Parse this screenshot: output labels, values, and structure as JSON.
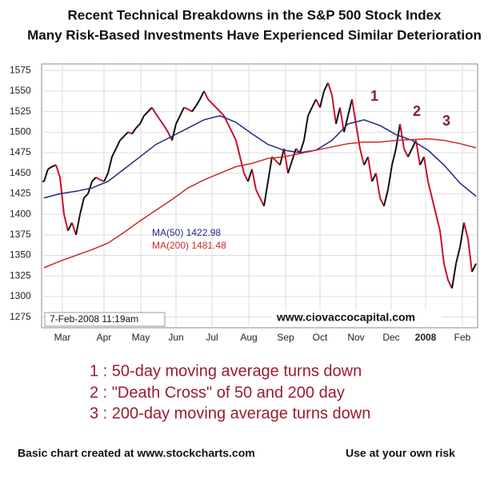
{
  "chart_data": {
    "type": "price",
    "title": "Recent Technical Breakdowns in the S&P 500 Stock Index",
    "subtitle": "Many Risk-Based Investments Have Experienced Similar Deterioration",
    "xlim": [
      -0.6,
      108.4
    ],
    "ylim": [
      1262,
      1583
    ],
    "yticks": [
      1275,
      1300,
      1325,
      1350,
      1375,
      1400,
      1425,
      1450,
      1475,
      1500,
      1525,
      1550,
      1575
    ],
    "xticks": [
      {
        "value": 4.6,
        "label": "Mar"
      },
      {
        "value": 15,
        "label": "Apr"
      },
      {
        "value": 24.2,
        "label": "May"
      },
      {
        "value": 33,
        "label": "Jun"
      },
      {
        "value": 42,
        "label": "Jul"
      },
      {
        "value": 51.2,
        "label": "Aug"
      },
      {
        "value": 60.4,
        "label": "Sep"
      },
      {
        "value": 69,
        "label": "Oct"
      },
      {
        "value": 78,
        "label": "Nov"
      },
      {
        "value": 86.8,
        "label": "Dec"
      },
      {
        "value": 95.4,
        "label": "2008"
      },
      {
        "value": 104.6,
        "label": "Feb"
      }
    ],
    "grid": true,
    "series": [
      {
        "color": "#c8102e",
        "up_color": "#111111",
        "x": [
          0,
          1,
          2,
          3,
          4,
          5,
          6,
          7,
          8,
          9,
          10,
          11,
          12,
          13,
          14,
          15,
          16,
          17,
          18,
          19,
          20,
          21,
          22,
          23,
          24,
          25,
          26,
          27,
          28,
          29,
          30,
          31,
          32,
          33,
          34,
          35,
          36,
          37,
          38,
          39,
          40,
          41,
          42,
          43,
          44,
          45,
          46,
          47,
          48,
          49,
          50,
          51,
          52,
          53,
          54,
          55,
          56,
          57,
          58,
          59,
          60,
          61,
          62,
          63,
          64,
          65,
          66,
          67,
          68,
          69,
          70,
          71,
          72,
          73,
          74,
          75,
          76,
          77,
          78,
          79,
          80,
          81,
          82,
          83,
          84,
          85,
          86,
          87,
          88,
          89,
          90,
          91,
          92,
          93,
          94,
          95,
          96,
          97,
          98,
          99,
          100,
          101,
          102,
          103,
          104,
          105,
          106,
          107,
          108
        ],
        "values": [
          1440,
          1455,
          1458,
          1460,
          1445,
          1400,
          1380,
          1390,
          1375,
          1400,
          1420,
          1425,
          1440,
          1445,
          1442,
          1440,
          1450,
          1470,
          1480,
          1490,
          1495,
          1500,
          1498,
          1505,
          1510,
          1520,
          1525,
          1530,
          1522,
          1515,
          1508,
          1500,
          1490,
          1510,
          1520,
          1530,
          1528,
          1525,
          1532,
          1540,
          1550,
          1540,
          1535,
          1530,
          1525,
          1520,
          1510,
          1500,
          1490,
          1470,
          1450,
          1440,
          1455,
          1430,
          1420,
          1410,
          1440,
          1470,
          1465,
          1460,
          1480,
          1450,
          1465,
          1480,
          1475,
          1490,
          1520,
          1530,
          1540,
          1530,
          1550,
          1560,
          1545,
          1510,
          1530,
          1500,
          1520,
          1540,
          1510,
          1480,
          1460,
          1470,
          1440,
          1450,
          1420,
          1410,
          1430,
          1460,
          1480,
          1510,
          1480,
          1470,
          1480,
          1490,
          1460,
          1470,
          1440,
          1420,
          1400,
          1380,
          1340,
          1320,
          1310,
          1340,
          1360,
          1390,
          1370,
          1330,
          1340
        ]
      },
      {
        "name": "MA(50)",
        "last": 1422.98,
        "color": "#1f2a80",
        "x": [
          0,
          4,
          8,
          12,
          16,
          20,
          24,
          28,
          32,
          36,
          40,
          44,
          48,
          52,
          56,
          60,
          64,
          68,
          72,
          76,
          80,
          84,
          88,
          92,
          96,
          100,
          104,
          108
        ],
        "values": [
          1420,
          1425,
          1428,
          1432,
          1440,
          1455,
          1470,
          1485,
          1495,
          1505,
          1515,
          1520,
          1512,
          1498,
          1485,
          1478,
          1475,
          1478,
          1490,
          1510,
          1515,
          1508,
          1497,
          1490,
          1478,
          1460,
          1438,
          1422
        ]
      },
      {
        "name": "MA(200)",
        "last": 1481.48,
        "color": "#cc2a2a",
        "x": [
          0,
          4,
          8,
          12,
          16,
          20,
          24,
          28,
          32,
          36,
          40,
          44,
          48,
          52,
          56,
          60,
          64,
          68,
          72,
          76,
          80,
          84,
          88,
          92,
          96,
          100,
          104,
          108
        ],
        "values": [
          1335,
          1343,
          1350,
          1357,
          1365,
          1378,
          1392,
          1405,
          1418,
          1432,
          1442,
          1450,
          1458,
          1462,
          1468,
          1470,
          1474,
          1478,
          1482,
          1486,
          1488,
          1488,
          1490,
          1491,
          1492,
          1490,
          1486,
          1481
        ]
      }
    ],
    "annotations": [
      "1",
      "2",
      "3"
    ],
    "timestamp": "7-Feb-2008 11:19am",
    "watermark": "www.ciovaccocapital.com",
    "notes": [
      "1 : 50-day moving average turns down",
      "2 : \"Death Cross\" of 50 and 200 day",
      "3 : 200-day moving average turns down"
    ],
    "footer_left": "Basic chart created at www.stockcharts.com",
    "footer_right": "Use at your own risk"
  }
}
